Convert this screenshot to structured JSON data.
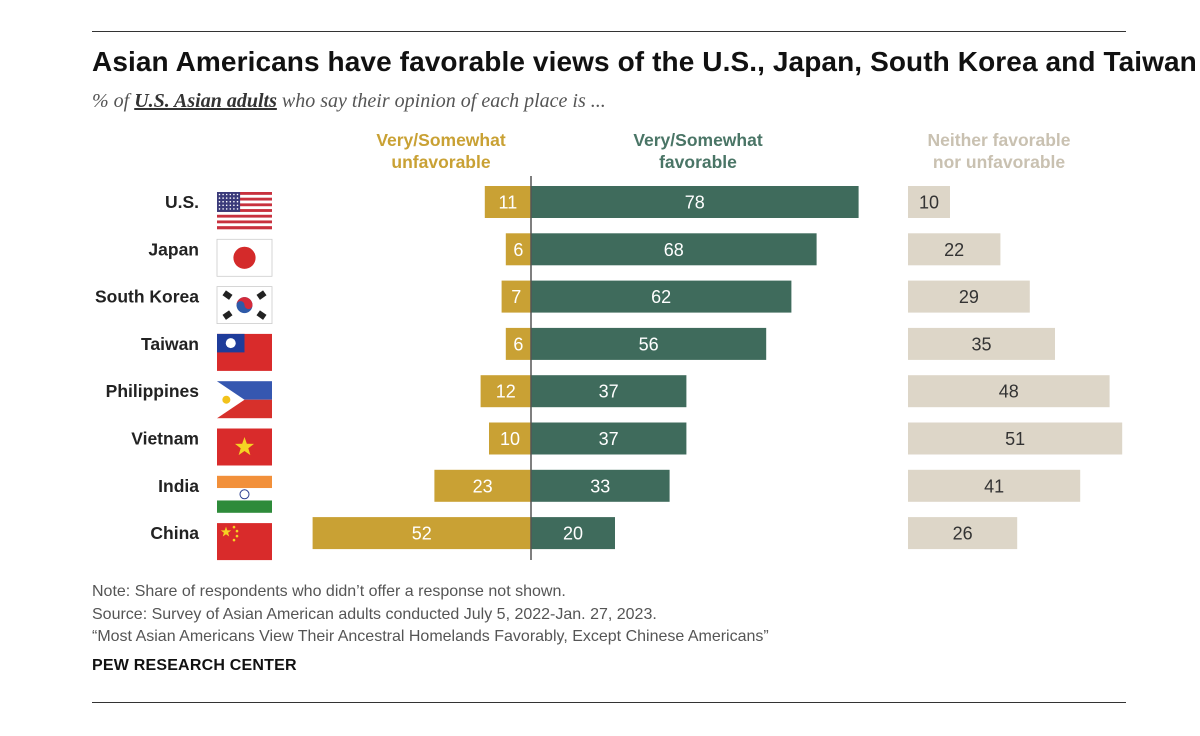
{
  "title": "Asian Americans have favorable views of the U.S., Japan, South Korea and Taiwan",
  "subtitle_prefix": "% of ",
  "subtitle_emphasis": "U.S. Asian adults",
  "subtitle_suffix": " who say their opinion of each place is ...",
  "notes": {
    "note": "Note: Share of respondents who didn’t offer a response not shown.",
    "source": "Source: Survey of Asian American adults conducted July 5, 2022-Jan. 27, 2023.",
    "report": "“Most Asian Americans View Their Ancestral Homelands Favorably, Except Chinese Americans”"
  },
  "brand": "PEW RESEARCH CENTER",
  "colors": {
    "unfavorable": "#c9a134",
    "favorable": "#3f6b5c",
    "neither": "#ddd6c8",
    "unfavorable_header": "#c9a134",
    "favorable_header": "#4a7566",
    "neither_header": "#c9c1b1"
  },
  "chart_data": {
    "type": "bar",
    "orientation": "horizontal",
    "stacked": "diverging",
    "categories": [
      "U.S.",
      "Japan",
      "South Korea",
      "Taiwan",
      "Philippines",
      "Vietnam",
      "India",
      "China"
    ],
    "flag_icons": [
      "us-flag-icon",
      "japan-flag-icon",
      "south-korea-flag-icon",
      "taiwan-flag-icon",
      "philippines-flag-icon",
      "vietnam-flag-icon",
      "india-flag-icon",
      "china-flag-icon"
    ],
    "series": [
      {
        "name": "Very/Somewhat unfavorable",
        "header_lines": [
          "Very/Somewhat",
          "unfavorable"
        ],
        "values": [
          11,
          6,
          7,
          6,
          12,
          10,
          23,
          52
        ]
      },
      {
        "name": "Very/Somewhat favorable",
        "header_lines": [
          "Very/Somewhat",
          "favorable"
        ],
        "values": [
          78,
          68,
          62,
          56,
          37,
          37,
          33,
          20
        ]
      },
      {
        "name": "Neither favorable nor unfavorable",
        "header_lines": [
          "Neither favorable",
          "nor unfavorable"
        ],
        "values": [
          10,
          22,
          29,
          35,
          48,
          51,
          41,
          26
        ]
      }
    ]
  }
}
